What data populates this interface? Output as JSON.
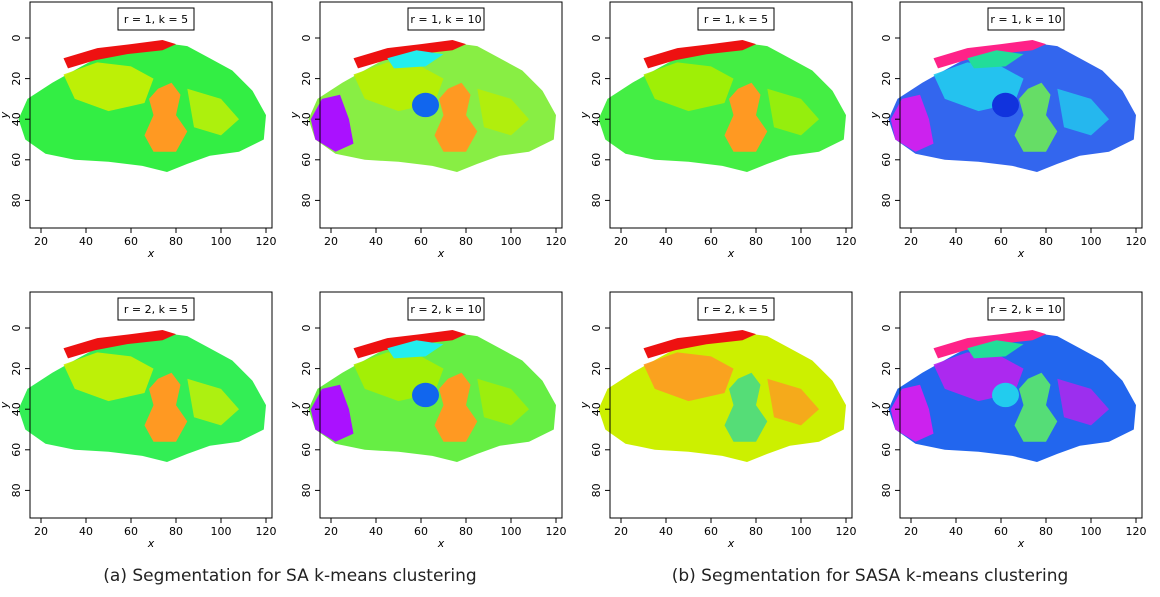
{
  "figure": {
    "panels": [
      {
        "title": "r = 1, k = 5",
        "xlabel": "x",
        "ylabel": "y",
        "xticks": [
          20,
          40,
          60,
          80,
          100,
          120
        ],
        "yticks": [
          0,
          20,
          40,
          60,
          80
        ]
      },
      {
        "title": "r = 1, k = 10",
        "xlabel": "x",
        "ylabel": "y",
        "xticks": [
          20,
          40,
          60,
          80,
          100,
          120
        ],
        "yticks": [
          0,
          20,
          40,
          60,
          80
        ]
      },
      {
        "title": "r = 1, k = 5",
        "xlabel": "x",
        "ylabel": "y",
        "xticks": [
          20,
          40,
          60,
          80,
          100,
          120
        ],
        "yticks": [
          0,
          20,
          40,
          60,
          80
        ]
      },
      {
        "title": "r = 1, k = 10",
        "xlabel": "x",
        "ylabel": "y",
        "xticks": [
          20,
          40,
          60,
          80,
          100,
          120
        ],
        "yticks": [
          0,
          20,
          40,
          60,
          80
        ]
      },
      {
        "title": "r = 2, k = 5",
        "xlabel": "x",
        "ylabel": "y",
        "xticks": [
          20,
          40,
          60,
          80,
          100,
          120
        ],
        "yticks": [
          0,
          20,
          40,
          60,
          80
        ]
      },
      {
        "title": "r = 2, k = 10",
        "xlabel": "x",
        "ylabel": "y",
        "xticks": [
          20,
          40,
          60,
          80,
          100,
          120
        ],
        "yticks": [
          0,
          20,
          40,
          60,
          80
        ]
      },
      {
        "title": "r = 2, k = 5",
        "xlabel": "x",
        "ylabel": "y",
        "xticks": [
          20,
          40,
          60,
          80,
          100,
          120
        ],
        "yticks": [
          0,
          20,
          40,
          60,
          80
        ]
      },
      {
        "title": "r = 2, k = 10",
        "xlabel": "x",
        "ylabel": "y",
        "xticks": [
          20,
          40,
          60,
          80,
          100,
          120
        ],
        "yticks": [
          0,
          20,
          40,
          60,
          80
        ]
      }
    ],
    "captions": [
      "(a) Segmentation for SA k-means clustering",
      "(b) Segmentation for SASA k-means clustering"
    ]
  }
}
